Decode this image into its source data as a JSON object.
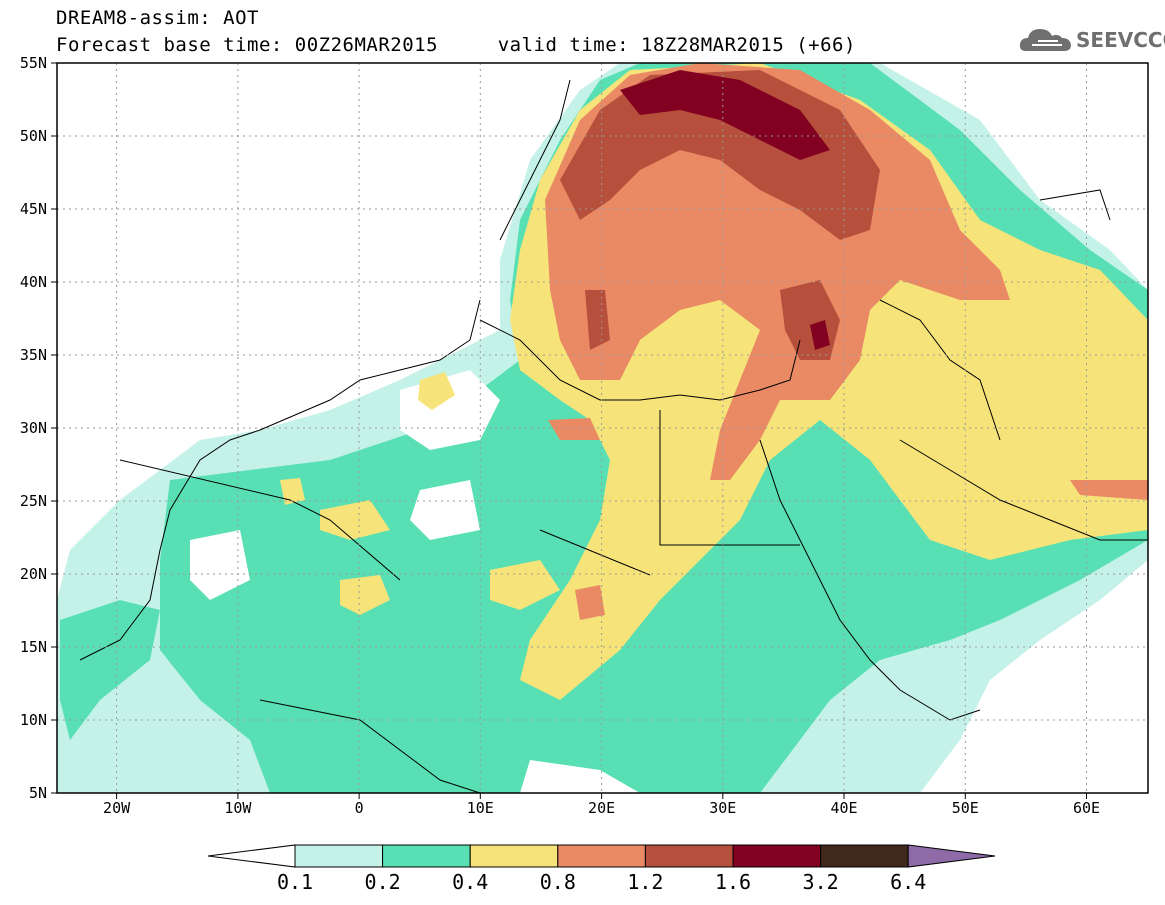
{
  "header": {
    "title_line1": "DREAM8-assim: AOT",
    "title_line2": "Forecast base time: 00Z26MAR2015     valid time: 18Z28MAR2015 (+66)"
  },
  "logo": {
    "text": "SEEVCCC",
    "icon": "cloud-icon"
  },
  "map": {
    "projection": "lat-lon",
    "lon_range": [
      -25,
      65
    ],
    "lat_range": [
      5,
      55
    ],
    "grid": "dotted",
    "lon_ticks": [
      "20W",
      "10W",
      "0",
      "10E",
      "20E",
      "30E",
      "40E",
      "50E",
      "60E"
    ],
    "lat_ticks": [
      "5N",
      "10N",
      "15N",
      "20N",
      "25N",
      "30N",
      "35N",
      "40N",
      "45N",
      "50N",
      "55N"
    ]
  },
  "legend": {
    "labels": [
      "0.1",
      "0.2",
      "0.4",
      "0.8",
      "1.2",
      "1.6",
      "3.2",
      "6.4"
    ],
    "colors": [
      "#ffffff",
      "#c4f2e8",
      "#58e0b4",
      "#f6e47a",
      "#e98a64",
      "#b6503c",
      "#820020",
      "#40281a",
      "#8e6aa6"
    ]
  }
}
